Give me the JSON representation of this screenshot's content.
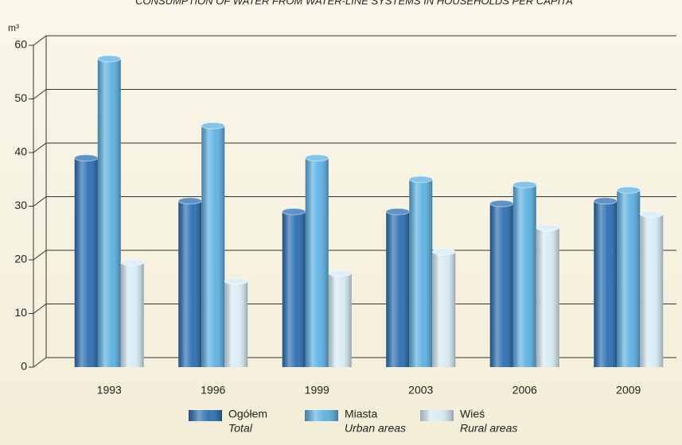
{
  "chart_data": {
    "type": "bar",
    "title": "CONSUMPTION OF WATER FROM WATER-LINE SYSTEMS IN HOUSEHOLDS PER CAPITA",
    "y_label": "m³",
    "categories": [
      "1993",
      "1996",
      "1999",
      "2003",
      "2006",
      "2009"
    ],
    "series": [
      {
        "name": "Ogółem",
        "name_en": "Total",
        "color": "#2b6eb2",
        "values": [
          39,
          31,
          29,
          29,
          30.5,
          31
        ]
      },
      {
        "name": "Miasta",
        "name_en": "Urban areas",
        "color": "#5cb0e2",
        "values": [
          57.5,
          45,
          39,
          35,
          34,
          33
        ]
      },
      {
        "name": "Wieś",
        "name_en": "Rural areas",
        "color": "#d6eaf3",
        "values": [
          19.5,
          16,
          17.5,
          21.5,
          26,
          28.5
        ]
      }
    ],
    "ylim": [
      0,
      60
    ],
    "yticks": [
      0,
      10,
      20,
      30,
      40,
      50,
      60
    ],
    "grid": true
  }
}
